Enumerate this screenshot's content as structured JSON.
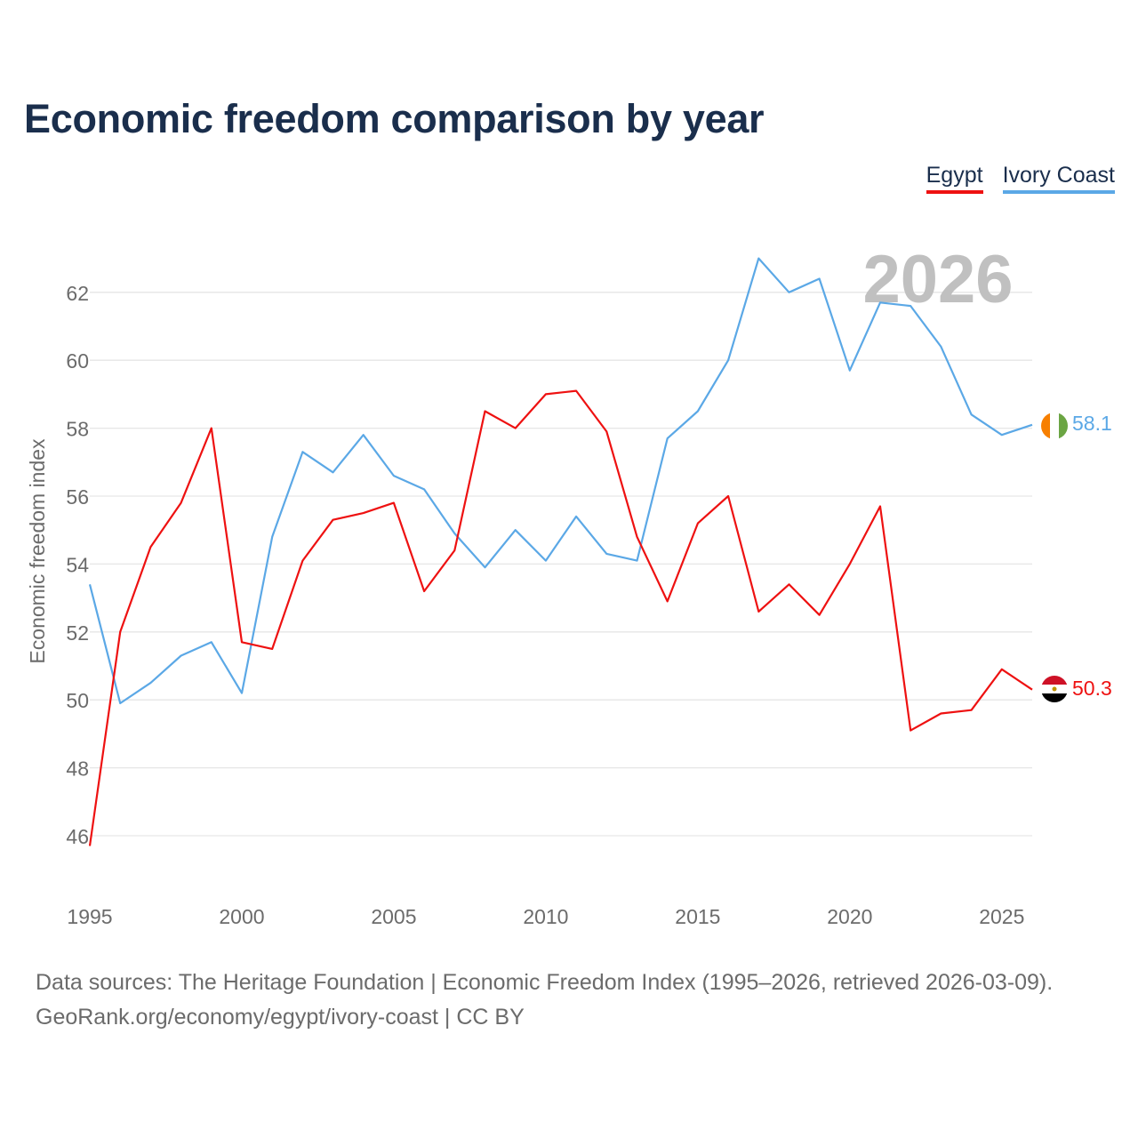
{
  "title": "Economic freedom comparison by year",
  "legend": {
    "egypt": "Egypt",
    "ivory_coast": "Ivory Coast"
  },
  "year_watermark": "2026",
  "footer": {
    "line1": "Data sources: The Heritage Foundation | Economic Freedom Index (1995–2026, retrieved 2026-03-09).",
    "line2": "GeoRank.org/economy/egypt/ivory-coast | CC BY"
  },
  "colors": {
    "egypt": "#ee1111",
    "ivory_coast": "#5ba8e6",
    "title": "#1a2e4c",
    "axis_text": "#6b6b6b",
    "grid": "#e6e6e6",
    "watermark": "#c0c0c0"
  },
  "chart_data": {
    "type": "line",
    "title": "Economic freedom comparison by year",
    "xlabel": "",
    "ylabel": "Economic freedom index",
    "xlim": [
      1995,
      2026
    ],
    "ylim": [
      45,
      64
    ],
    "x_ticks": [
      1995,
      2000,
      2005,
      2010,
      2015,
      2020,
      2025
    ],
    "y_ticks": [
      46,
      48,
      50,
      52,
      54,
      56,
      58,
      60,
      62
    ],
    "grid": true,
    "x": [
      1995,
      1996,
      1997,
      1998,
      1999,
      2000,
      2001,
      2002,
      2003,
      2004,
      2005,
      2006,
      2007,
      2008,
      2009,
      2010,
      2011,
      2012,
      2013,
      2014,
      2015,
      2016,
      2017,
      2018,
      2019,
      2020,
      2021,
      2022,
      2023,
      2024,
      2025,
      2026
    ],
    "series": [
      {
        "name": "Egypt",
        "color": "#ee1111",
        "end_label": "50.3",
        "values": [
          45.7,
          52.0,
          54.5,
          55.8,
          58.0,
          51.7,
          51.5,
          54.1,
          55.3,
          55.5,
          55.8,
          53.2,
          54.4,
          58.5,
          58.0,
          59.0,
          59.1,
          57.9,
          54.8,
          52.9,
          55.2,
          56.0,
          52.6,
          53.4,
          52.5,
          54.0,
          55.7,
          49.1,
          49.6,
          49.7,
          50.9,
          50.3
        ]
      },
      {
        "name": "Ivory Coast",
        "color": "#5ba8e6",
        "end_label": "58.1",
        "values": [
          53.4,
          49.9,
          50.5,
          51.3,
          51.7,
          50.2,
          54.8,
          57.3,
          56.7,
          57.8,
          56.6,
          56.2,
          54.9,
          53.9,
          55.0,
          54.1,
          55.4,
          54.3,
          54.1,
          57.7,
          58.5,
          60.0,
          63.0,
          62.0,
          62.4,
          59.7,
          61.7,
          61.6,
          60.4,
          58.4,
          57.8,
          58.1
        ]
      }
    ],
    "annotations": [
      "2026"
    ]
  }
}
